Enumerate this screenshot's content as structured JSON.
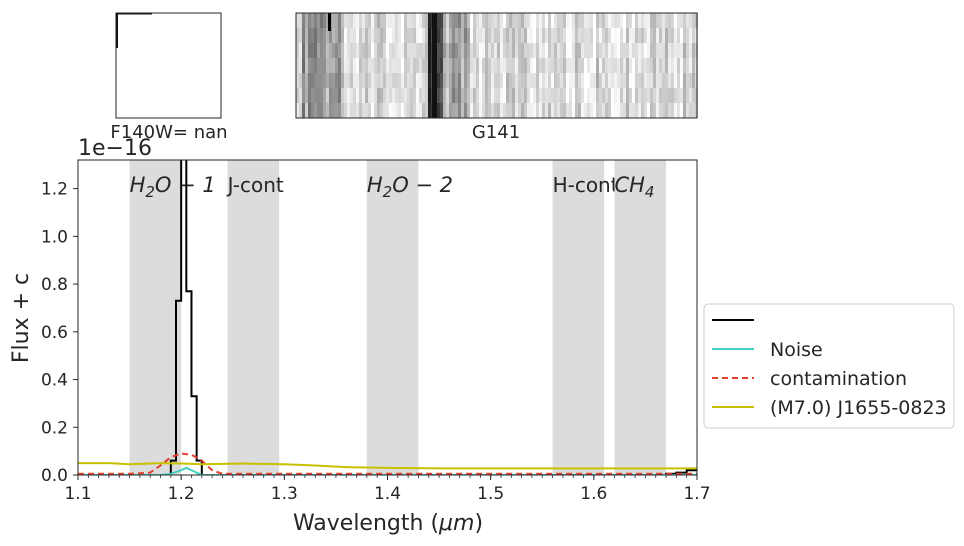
{
  "chart_data": {
    "type": "line",
    "xlabel": "Wavelength ($\\mu m$)",
    "xlabel_text": "Wavelength (",
    "xlabel_unit": "μm",
    "xlabel_close": ")",
    "ylabel": "Flux + c",
    "offset_text": "1e−16",
    "xlim": [
      1.1,
      1.7
    ],
    "ylim": [
      0.0,
      1.32
    ],
    "x_ticks": [
      "1.1",
      "1.2",
      "1.3",
      "1.4",
      "1.5",
      "1.6",
      "1.7"
    ],
    "y_ticks": [
      "0.0",
      "0.2",
      "0.4",
      "0.6",
      "0.8",
      "1.0",
      "1.2"
    ],
    "bands": [
      {
        "label": "$H_2O-1$",
        "math_base": "H",
        "math_sub": "2",
        "math_rest": "O − 1",
        "xmin": 1.15,
        "xmax": 1.2
      },
      {
        "label": "J-cont",
        "xmin": 1.245,
        "xmax": 1.295
      },
      {
        "label": "$H_2O-2$",
        "math_base": "H",
        "math_sub": "2",
        "math_rest": "O − 2",
        "xmin": 1.38,
        "xmax": 1.43
      },
      {
        "label": "H-cont",
        "xmin": 1.56,
        "xmax": 1.61
      },
      {
        "label": "$CH_4$",
        "math_base": "CH",
        "math_sub": "4",
        "math_rest": "",
        "xmin": 1.62,
        "xmax": 1.67
      }
    ],
    "series": [
      {
        "name": "",
        "color": "#000000",
        "style": "steps",
        "x": [
          1.1,
          1.12,
          1.14,
          1.16,
          1.18,
          1.19,
          1.195,
          1.2,
          1.205,
          1.21,
          1.215,
          1.22,
          1.25,
          1.3,
          1.4,
          1.5,
          1.6,
          1.65,
          1.67,
          1.68,
          1.69,
          1.7
        ],
        "y": [
          0.0,
          0.0,
          0.0,
          0.0,
          0.0,
          0.06,
          0.73,
          1.5,
          0.77,
          0.33,
          0.06,
          0.0,
          0.0,
          0.0,
          0.0,
          0.0,
          0.0,
          0.0,
          0.005,
          0.01,
          0.02,
          0.03
        ]
      },
      {
        "name": "Noise",
        "color": "#40d0c0",
        "style": "line",
        "x": [
          1.1,
          1.18,
          1.19,
          1.2,
          1.205,
          1.21,
          1.22,
          1.3,
          1.4,
          1.5,
          1.6,
          1.7
        ],
        "y": [
          0.0,
          0.0,
          0.005,
          0.02,
          0.03,
          0.02,
          0.0,
          0.0,
          0.0,
          0.0,
          0.0,
          0.0
        ]
      },
      {
        "name": "contamination",
        "color": "#e04030",
        "style": "dashed",
        "x": [
          1.1,
          1.15,
          1.17,
          1.18,
          1.19,
          1.2,
          1.21,
          1.22,
          1.23,
          1.24,
          1.3,
          1.4,
          1.5,
          1.6,
          1.7
        ],
        "y": [
          0.005,
          0.005,
          0.01,
          0.04,
          0.075,
          0.09,
          0.085,
          0.06,
          0.02,
          0.005,
          0.005,
          0.005,
          0.005,
          0.005,
          0.005
        ]
      },
      {
        "name": "(M7.0) J1655-0823",
        "color": "#c8c000",
        "style": "line",
        "x": [
          1.1,
          1.13,
          1.15,
          1.18,
          1.2,
          1.22,
          1.26,
          1.3,
          1.33,
          1.36,
          1.4,
          1.45,
          1.5,
          1.55,
          1.6,
          1.65,
          1.7
        ],
        "y": [
          0.05,
          0.05,
          0.045,
          0.05,
          0.048,
          0.045,
          0.048,
          0.045,
          0.04,
          0.033,
          0.03,
          0.028,
          0.028,
          0.028,
          0.028,
          0.028,
          0.028
        ]
      }
    ],
    "legend_placement": "center-right"
  },
  "panels": {
    "direct_label": "F140W= nan",
    "grism_label": "G141"
  }
}
